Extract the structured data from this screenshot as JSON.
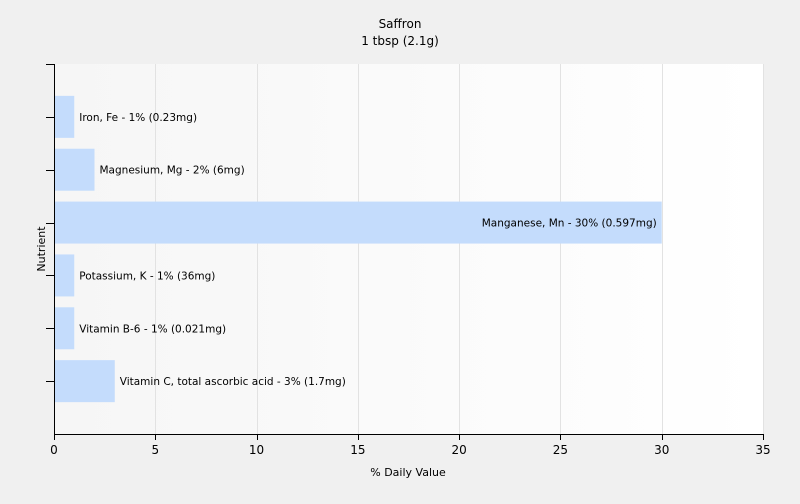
{
  "chart_data": {
    "type": "bar",
    "orientation": "horizontal",
    "title": "Saffron",
    "subtitle": "1 tbsp (2.1g)",
    "xlabel": "% Daily Value",
    "ylabel": "Nutrient",
    "xlim": [
      0,
      35
    ],
    "xticks": [
      0,
      5,
      10,
      15,
      20,
      25,
      30,
      35
    ],
    "grid": true,
    "bar_color": "#c4dcfc",
    "categories": [
      "Iron, Fe",
      "Magnesium, Mg",
      "Manganese, Mn",
      "Potassium, K",
      "Vitamin B-6",
      "Vitamin C, total ascorbic acid"
    ],
    "values": [
      1,
      2,
      30,
      1,
      1,
      3
    ],
    "labels": [
      "Iron, Fe - 1% (0.23mg)",
      "Magnesium, Mg - 2% (6mg)",
      "Manganese, Mn - 30% (0.597mg)",
      "Potassium, K - 1% (36mg)",
      "Vitamin B-6 - 1% (0.021mg)",
      "Vitamin C, total ascorbic acid - 3% (1.7mg)"
    ]
  }
}
